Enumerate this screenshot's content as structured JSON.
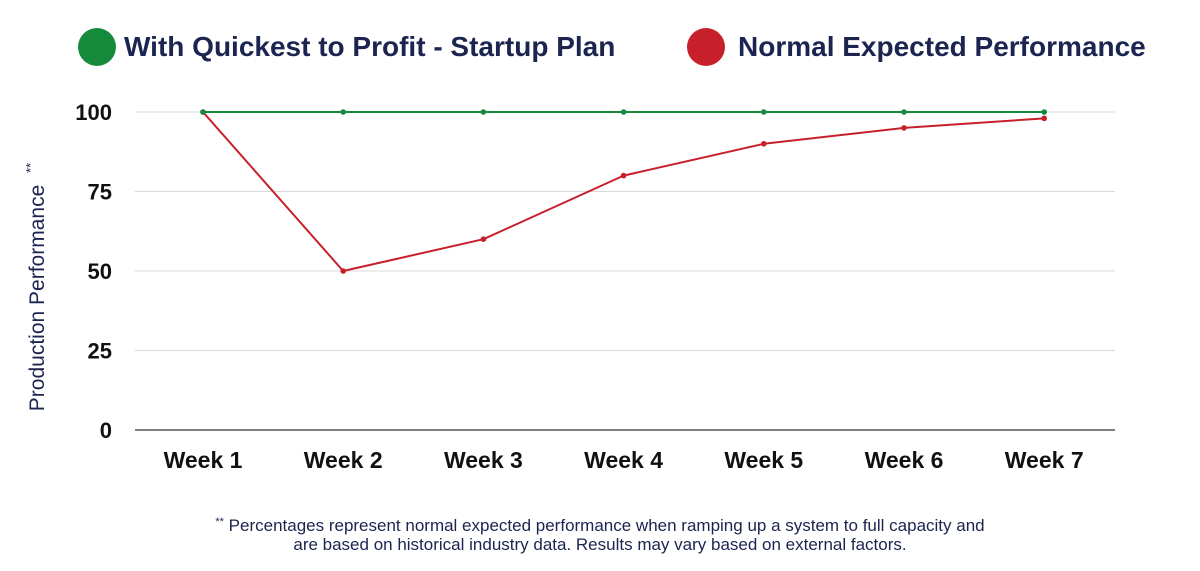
{
  "chart_data": {
    "type": "line",
    "categories": [
      "Week 1",
      "Week 2",
      "Week 3",
      "Week 4",
      "Week 5",
      "Week 6",
      "Week 7"
    ],
    "series": [
      {
        "name": "With Quickest to Profit - Startup Plan",
        "color": "#158a3b",
        "values": [
          100,
          100,
          100,
          100,
          100,
          100,
          100
        ]
      },
      {
        "name": "Normal Expected Performance",
        "color": "#c8202a",
        "values": [
          100,
          50,
          60,
          80,
          90,
          95,
          98
        ]
      }
    ],
    "ylabel": "Production Performance",
    "ylabel_marker": "**",
    "ylim": [
      0,
      100
    ],
    "yticks": [
      "0",
      "25",
      "50",
      "75",
      "100"
    ],
    "grid": true,
    "legend_position": "top"
  },
  "footnote": {
    "marker": "**",
    "line1": "Percentages represent normal expected performance when ramping up a system to full capacity and",
    "line2": "are based on historical industry data. Results may vary based on external factors."
  },
  "colors": {
    "text": "#1c2450",
    "grid": "#d9d9d9",
    "axis": "#333333"
  }
}
